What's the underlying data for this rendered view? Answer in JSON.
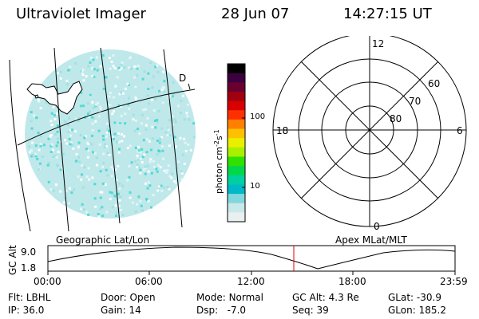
{
  "header": {
    "title": "Ultraviolet Imager",
    "date": "28 Jun 07",
    "time": "14:27:15 UT"
  },
  "image_panel": {
    "marker_label": "D",
    "fill_color": "#bfe8ea",
    "speckle_color": "#37d6cf"
  },
  "colorbar": {
    "unit_prefix": "photon cm",
    "unit_exp1": "-2",
    "unit_mid": "s",
    "unit_exp2": "-1",
    "ticks": [
      {
        "label": "100"
      },
      {
        "label": "10"
      }
    ],
    "colors": [
      "#000000",
      "#3a0040",
      "#6a0030",
      "#a00010",
      "#d80000",
      "#ff3000",
      "#ff8000",
      "#ffc000",
      "#e8f000",
      "#a8f000",
      "#30e000",
      "#00d84a",
      "#00d0a0",
      "#00b8c8",
      "#80d8dc",
      "#c8e8ea",
      "#e8f0f0"
    ]
  },
  "polar": {
    "mlt_labels": {
      "top": "12",
      "left": "18",
      "right": "6",
      "bottom": "0"
    },
    "lat_labels": [
      "60",
      "70",
      "80"
    ],
    "blob_color": "#bfe8ea"
  },
  "orbit_plot": {
    "left_title": "Geographic Lat/Lon",
    "right_title": "Apex MLat/MLT",
    "ylabel": "GC Alt",
    "ymax": "9.0",
    "ymin": "1.8",
    "xticks": [
      "00:00",
      "06:00",
      "12:00",
      "18:00",
      "23:59"
    ],
    "current_marker_color": "#e00000"
  },
  "status": {
    "row1": [
      {
        "key": "Flt:",
        "value": "LBHL"
      },
      {
        "key": "Door:",
        "value": "Open"
      },
      {
        "key": "Mode:",
        "value": "Normal"
      },
      {
        "key": "GC Alt:",
        "value": "4.3 Re"
      },
      {
        "key": "GLat:",
        "value": "-30.9"
      }
    ],
    "row2": [
      {
        "key": "IP:",
        "value": "36.0"
      },
      {
        "key": "Gain:",
        "value": "14"
      },
      {
        "key": "Dsp:",
        "value": "  -7.0"
      },
      {
        "key": "Seq:",
        "value": "39"
      },
      {
        "key": "GLon:",
        "value": "185.2"
      }
    ]
  }
}
